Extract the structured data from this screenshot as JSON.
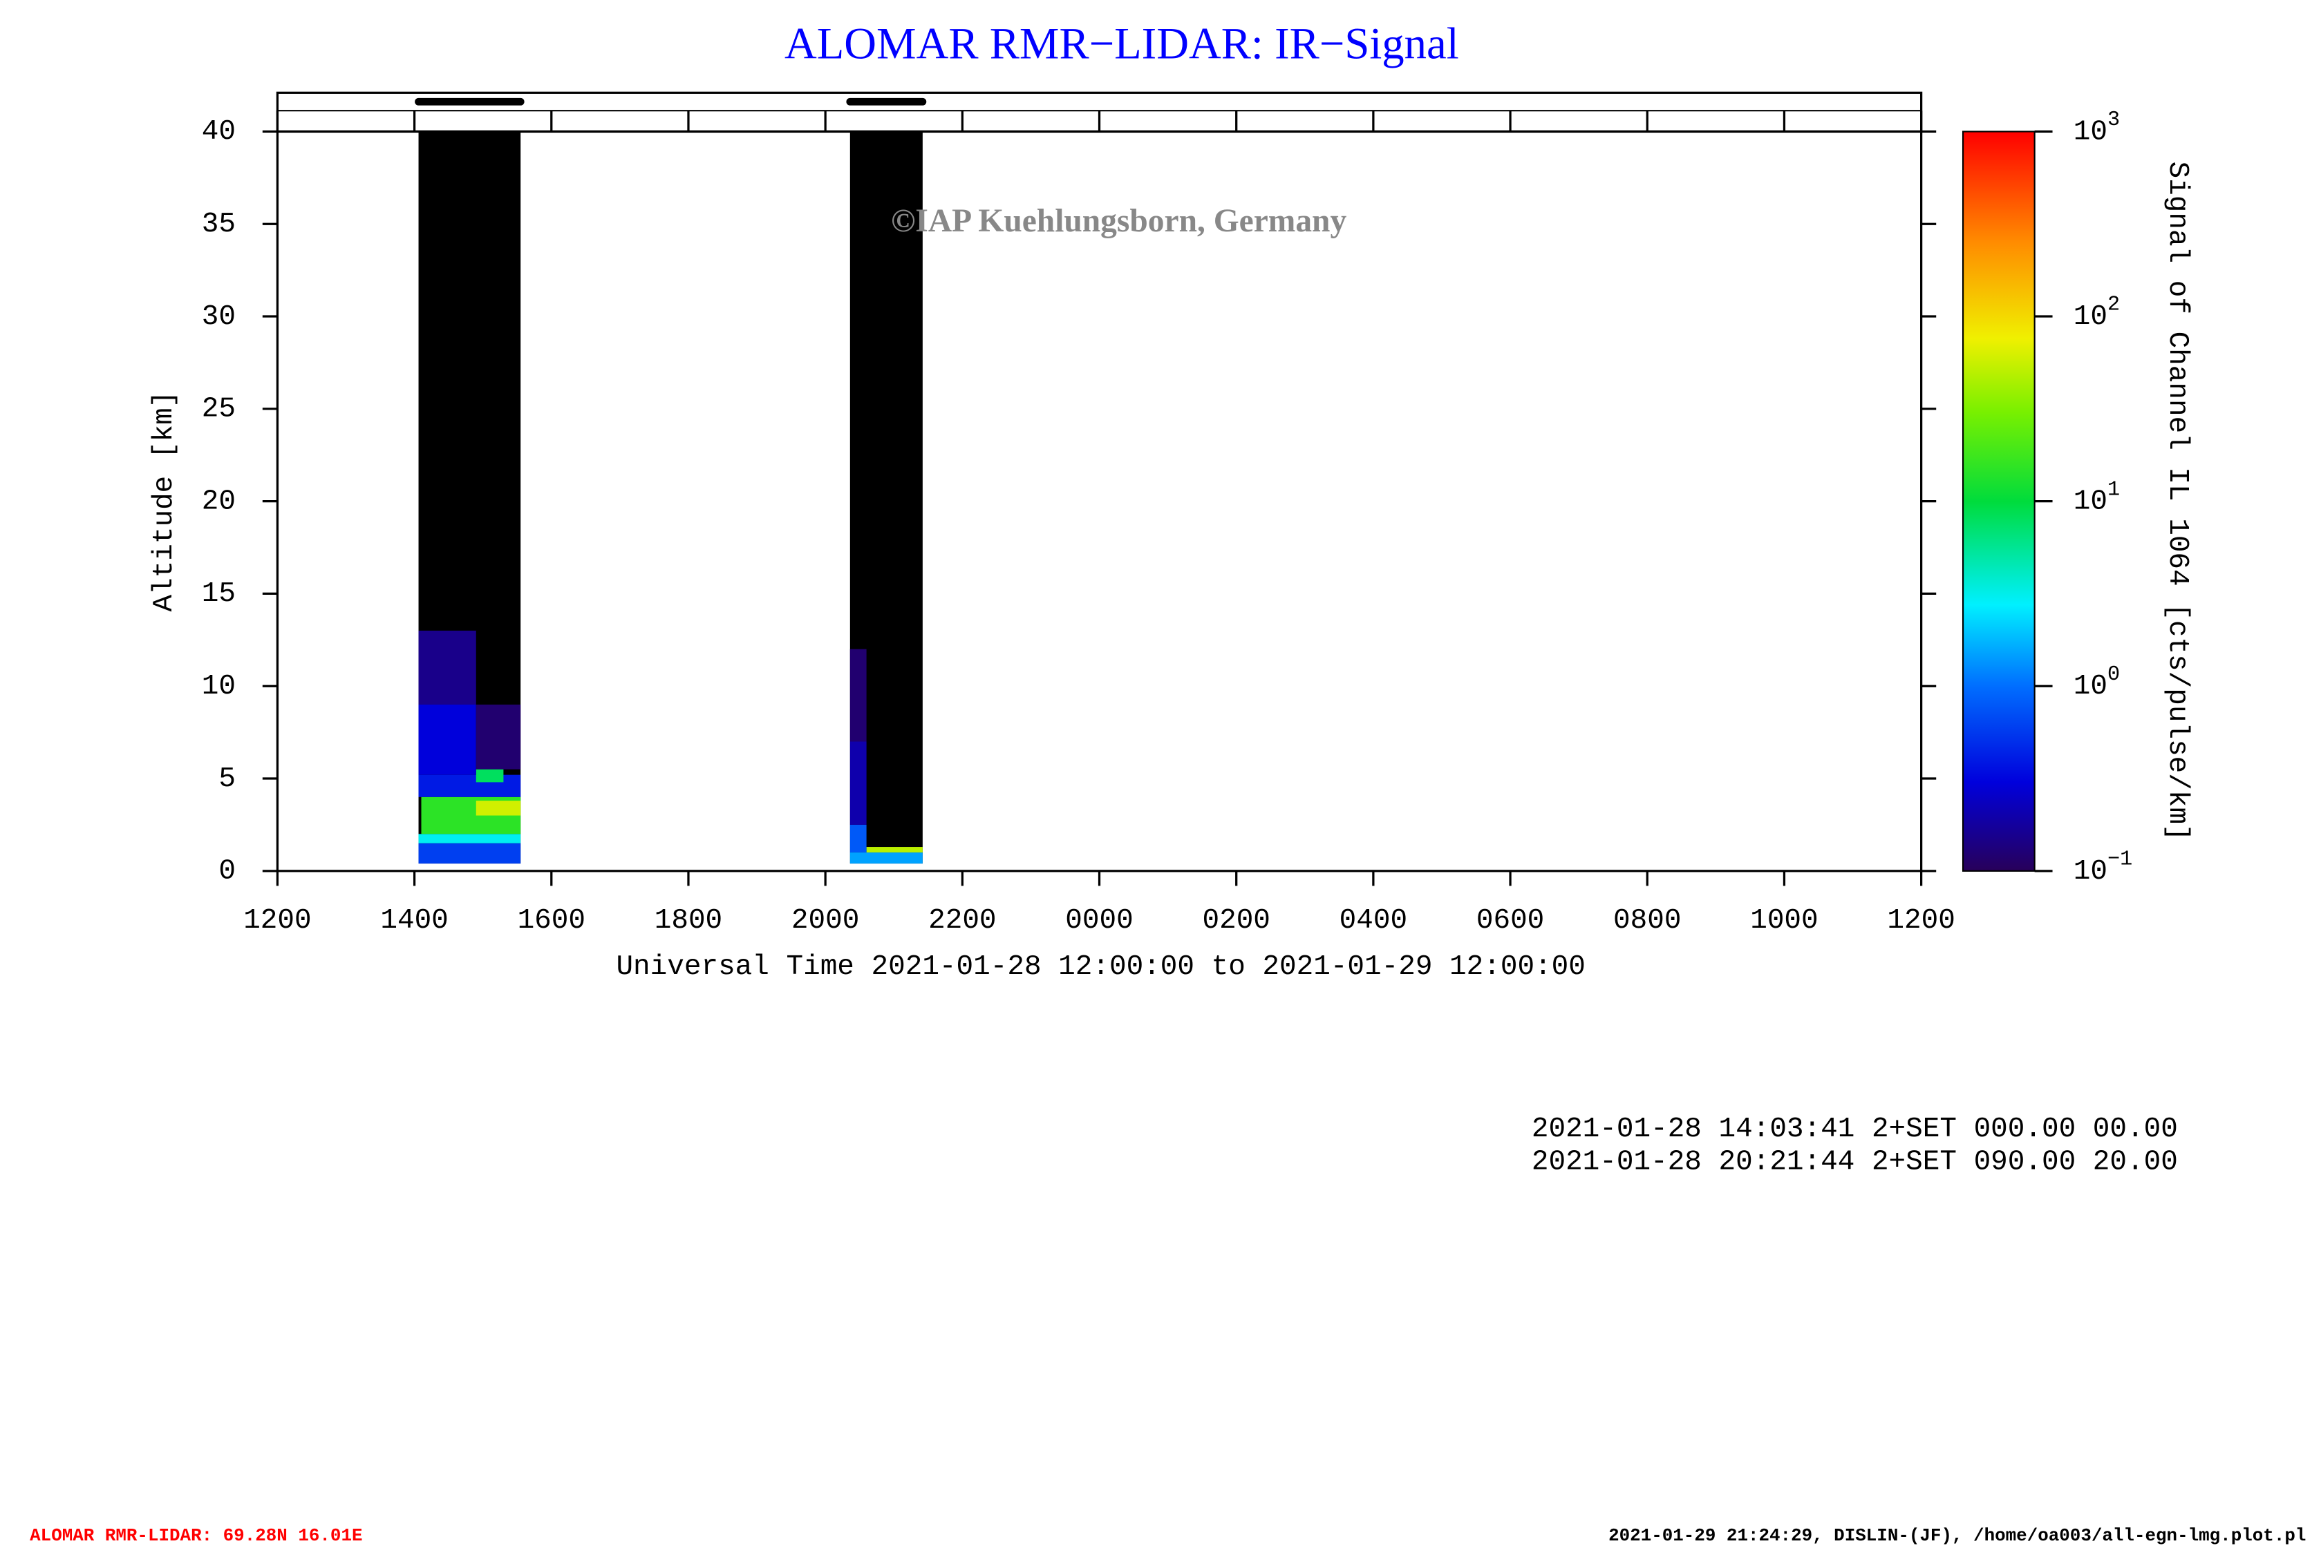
{
  "chart_data": {
    "type": "lidar-heatmap",
    "title": "ALOMAR RMR−LIDAR: IR−Signal",
    "watermark": "©IAP Kuehlungsborn, Germany",
    "xlabel": "Universal Time 2021-01-28 12:00:00 to 2021-01-29 12:00:00",
    "ylabel": "Altitude [km]",
    "xlim": [
      0,
      24
    ],
    "xticks": [
      {
        "value": 0,
        "label": "1200"
      },
      {
        "value": 2,
        "label": "1400"
      },
      {
        "value": 4,
        "label": "1600"
      },
      {
        "value": 6,
        "label": "1800"
      },
      {
        "value": 8,
        "label": "2000"
      },
      {
        "value": 10,
        "label": "2200"
      },
      {
        "value": 12,
        "label": "0000"
      },
      {
        "value": 14,
        "label": "0200"
      },
      {
        "value": 16,
        "label": "0400"
      },
      {
        "value": 18,
        "label": "0600"
      },
      {
        "value": 20,
        "label": "0800"
      },
      {
        "value": 22,
        "label": "1000"
      },
      {
        "value": 24,
        "label": "1200"
      }
    ],
    "ylim": [
      0,
      40
    ],
    "yticks": [
      0,
      5,
      10,
      15,
      20,
      25,
      30,
      35,
      40
    ],
    "colorbar": {
      "label": "Signal of Channel IL 1064 [cts/pulse/km]",
      "log_scale": true,
      "clim": [
        0.1,
        1000
      ],
      "ticks": [
        {
          "value": 0.1,
          "label": "10",
          "exponent": "−1"
        },
        {
          "value": 1,
          "label": "10",
          "exponent": "0"
        },
        {
          "value": 10,
          "label": "10",
          "exponent": "1"
        },
        {
          "value": 100,
          "label": "10",
          "exponent": "2"
        },
        {
          "value": 1000,
          "label": "10",
          "exponent": "3"
        }
      ]
    },
    "background_color": "#000000",
    "blocks": [
      {
        "start": 2.06,
        "end": 3.55,
        "data_top": 40,
        "data_bottom": 0.4,
        "cells": [
          {
            "x": [
              2.06,
              3.55
            ],
            "y": [
              0.4,
              1.5
            ],
            "value": 0.6
          },
          {
            "x": [
              2.06,
              3.55
            ],
            "y": [
              1.5,
              2.0
            ],
            "value": 3
          },
          {
            "x": [
              2.1,
              3.55
            ],
            "y": [
              2.0,
              4.0
            ],
            "value": 15
          },
          {
            "x": [
              2.9,
              3.55
            ],
            "y": [
              3.0,
              3.8
            ],
            "value": 60
          },
          {
            "x": [
              2.06,
              3.55
            ],
            "y": [
              4.0,
              5.2
            ],
            "value": 0.4
          },
          {
            "x": [
              2.9,
              3.3
            ],
            "y": [
              4.8,
              5.5
            ],
            "value": 8
          },
          {
            "x": [
              2.06,
              2.9
            ],
            "y": [
              5.2,
              9.0
            ],
            "value": 0.3
          },
          {
            "x": [
              2.06,
              2.9
            ],
            "y": [
              9.0,
              13.0
            ],
            "value": 0.15
          },
          {
            "x": [
              2.9,
              3.55
            ],
            "y": [
              5.5,
              9.0
            ],
            "value": 0.12
          }
        ]
      },
      {
        "start": 8.36,
        "end": 9.42,
        "data_top": 40,
        "data_bottom": 0.4,
        "cells": [
          {
            "x": [
              8.36,
              9.42
            ],
            "y": [
              0.4,
              1.0
            ],
            "value": 1.5
          },
          {
            "x": [
              8.6,
              9.42
            ],
            "y": [
              1.0,
              1.3
            ],
            "value": 50
          },
          {
            "x": [
              8.36,
              8.6
            ],
            "y": [
              1.0,
              2.5
            ],
            "value": 0.8
          },
          {
            "x": [
              8.36,
              8.6
            ],
            "y": [
              2.5,
              7.0
            ],
            "value": 0.2
          },
          {
            "x": [
              8.36,
              8.6
            ],
            "y": [
              7.0,
              12.0
            ],
            "value": 0.12
          }
        ]
      }
    ],
    "info_lines": [
      "2021-01-28 14:03:41 2+SET 000.00 00.00",
      "2021-01-28 20:21:44 2+SET 090.00 20.00"
    ],
    "footer_left": "ALOMAR RMR-LIDAR: 69.28N 16.01E",
    "footer_right": "2021-01-29 21:24:29, DISLIN-(JF), /home/oa003/all-egn-lmg.plot.pl"
  }
}
